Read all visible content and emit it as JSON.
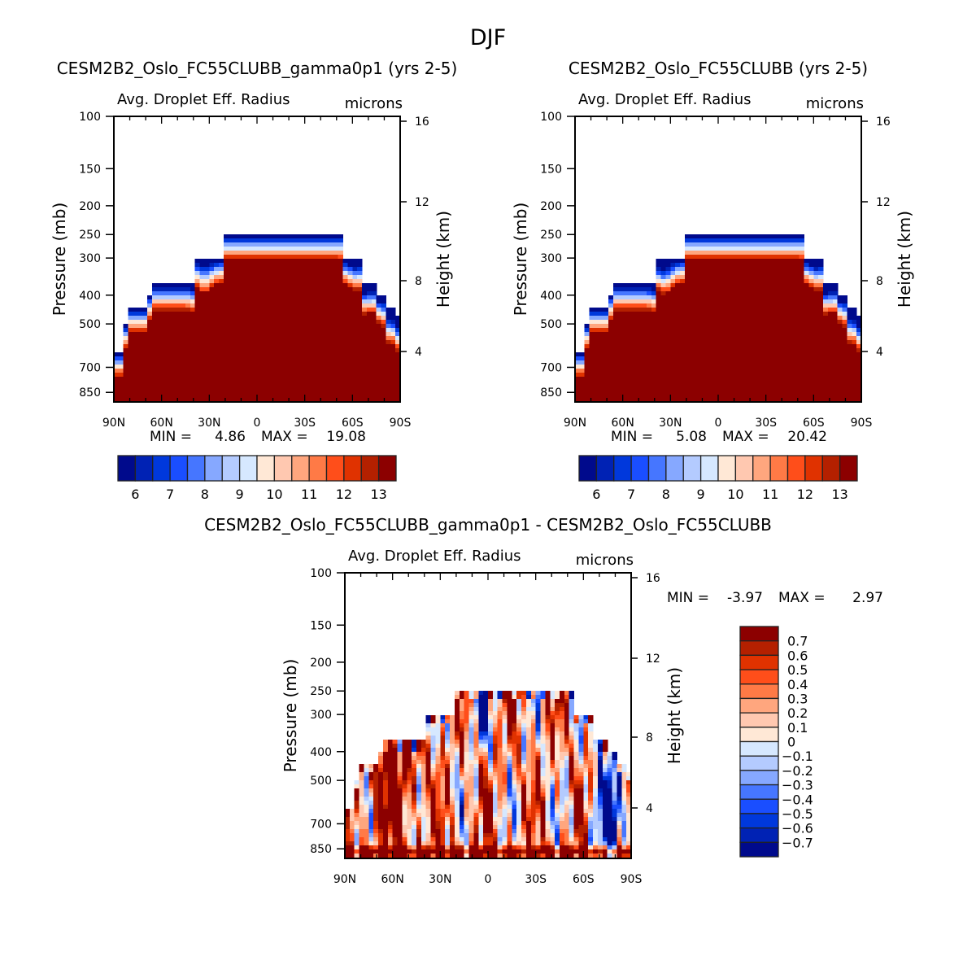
{
  "title": "DJF",
  "colors": {
    "abs_palette": [
      "#000a8c",
      "#0022b4",
      "#0038dc",
      "#1a4eff",
      "#4676ff",
      "#86a8ff",
      "#b4cbff",
      "#d6e8ff",
      "#ffe8d6",
      "#ffc8b0",
      "#ffa67e",
      "#ff7a46",
      "#ff4e1a",
      "#e03200",
      "#b42000",
      "#8c0000"
    ]
  },
  "chart_data": [
    {
      "type": "heatmap",
      "title": "CESM2B2_Oslo_FC55CLUBB_gamma0p1 (yrs 2-5)",
      "subtitle": "Avg. Droplet Eff. Radius",
      "units": "microns",
      "xlabel": "",
      "ylabel": "Pressure (mb)",
      "ylabel_right": "Height (km)",
      "xticks": [
        "90N",
        "60N",
        "30N",
        "0",
        "30S",
        "60S",
        "90S"
      ],
      "xtick_values": [
        90,
        60,
        30,
        0,
        -30,
        -60,
        -90
      ],
      "yticks": [
        "100",
        "150",
        "200",
        "250",
        "300",
        "400",
        "500",
        "700",
        "850"
      ],
      "ytick_values": [
        100,
        150,
        200,
        250,
        300,
        400,
        500,
        700,
        850
      ],
      "yticks_right": [
        "16",
        "12",
        "8",
        "4"
      ],
      "ytick_right_values": [
        16,
        12,
        8,
        4
      ],
      "ylim": [
        100,
        916
      ],
      "xlim": [
        90,
        -90
      ],
      "min_label": "MIN =",
      "min": "4.86",
      "max_label": "MAX =",
      "max": "19.08",
      "levels": [
        6,
        6.5,
        7,
        7.5,
        8,
        8.5,
        9,
        9.5,
        10,
        10.5,
        11,
        11.5,
        12,
        12.5,
        13
      ],
      "colorbar_labels": [
        "6",
        "7",
        "8",
        "9",
        "10",
        "11",
        "12",
        "13"
      ],
      "mask_top_pressure": [
        [
          90,
          620
        ],
        [
          85,
          500
        ],
        [
          80,
          440
        ],
        [
          70,
          400
        ],
        [
          65,
          370
        ],
        [
          50,
          370
        ],
        [
          40,
          300
        ],
        [
          20,
          250
        ],
        [
          -45,
          250
        ],
        [
          -55,
          300
        ],
        [
          -65,
          370
        ],
        [
          -75,
          400
        ],
        [
          -82,
          440
        ],
        [
          -88,
          470
        ]
      ],
      "seed": 1
    },
    {
      "type": "heatmap",
      "title": "CESM2B2_Oslo_FC55CLUBB (yrs 2-5)",
      "subtitle": "Avg. Droplet Eff. Radius",
      "units": "microns",
      "ylabel": "Pressure (mb)",
      "ylabel_right": "Height (km)",
      "xticks": [
        "90N",
        "60N",
        "30N",
        "0",
        "30S",
        "60S",
        "90S"
      ],
      "xtick_values": [
        90,
        60,
        30,
        0,
        -30,
        -60,
        -90
      ],
      "yticks": [
        "100",
        "150",
        "200",
        "250",
        "300",
        "400",
        "500",
        "700",
        "850"
      ],
      "ytick_values": [
        100,
        150,
        200,
        250,
        300,
        400,
        500,
        700,
        850
      ],
      "yticks_right": [
        "16",
        "12",
        "8",
        "4"
      ],
      "ytick_right_values": [
        16,
        12,
        8,
        4
      ],
      "ylim": [
        100,
        916
      ],
      "xlim": [
        90,
        -90
      ],
      "min_label": "MIN =",
      "min": "5.08",
      "max_label": "MAX =",
      "max": "20.42",
      "levels": [
        6,
        6.5,
        7,
        7.5,
        8,
        8.5,
        9,
        9.5,
        10,
        10.5,
        11,
        11.5,
        12,
        12.5,
        13
      ],
      "colorbar_labels": [
        "6",
        "7",
        "8",
        "9",
        "10",
        "11",
        "12",
        "13"
      ],
      "mask_top_pressure": [
        [
          90,
          620
        ],
        [
          85,
          500
        ],
        [
          80,
          440
        ],
        [
          70,
          400
        ],
        [
          65,
          370
        ],
        [
          50,
          370
        ],
        [
          40,
          300
        ],
        [
          20,
          250
        ],
        [
          -45,
          250
        ],
        [
          -55,
          300
        ],
        [
          -65,
          370
        ],
        [
          -75,
          400
        ],
        [
          -82,
          440
        ],
        [
          -88,
          470
        ]
      ],
      "seed": 2
    },
    {
      "type": "heatmap",
      "title": "CESM2B2_Oslo_FC55CLUBB_gamma0p1 - CESM2B2_Oslo_FC55CLUBB",
      "subtitle": "Avg. Droplet Eff. Radius",
      "units": "microns",
      "ylabel": "Pressure (mb)",
      "ylabel_right": "Height (km)",
      "xticks": [
        "90N",
        "60N",
        "30N",
        "0",
        "30S",
        "60S",
        "90S"
      ],
      "xtick_values": [
        90,
        60,
        30,
        0,
        -30,
        -60,
        -90
      ],
      "yticks": [
        "100",
        "150",
        "200",
        "250",
        "300",
        "400",
        "500",
        "700",
        "850"
      ],
      "ytick_values": [
        100,
        150,
        200,
        250,
        300,
        400,
        500,
        700,
        850
      ],
      "yticks_right": [
        "16",
        "12",
        "8",
        "4"
      ],
      "ytick_right_values": [
        16,
        12,
        8,
        4
      ],
      "ylim": [
        100,
        916
      ],
      "xlim": [
        90,
        -90
      ],
      "min_label": "MIN =",
      "min": "-3.97",
      "max_label": "MAX =",
      "max": "2.97",
      "levels": [
        -0.7,
        -0.6,
        -0.5,
        -0.4,
        -0.3,
        -0.2,
        -0.1,
        0,
        0.1,
        0.2,
        0.3,
        0.4,
        0.5,
        0.6,
        0.7
      ],
      "colorbar_labels": [
        "0.7",
        "0.6",
        "0.5",
        "0.4",
        "0.3",
        "0.2",
        "0.1",
        "0",
        "−0.1",
        "−0.2",
        "−0.3",
        "−0.4",
        "−0.5",
        "−0.6",
        "−0.7"
      ],
      "mask_top_pressure": [
        [
          90,
          620
        ],
        [
          85,
          500
        ],
        [
          80,
          440
        ],
        [
          70,
          400
        ],
        [
          65,
          370
        ],
        [
          50,
          370
        ],
        [
          40,
          300
        ],
        [
          20,
          250
        ],
        [
          -45,
          250
        ],
        [
          -55,
          300
        ],
        [
          -65,
          370
        ],
        [
          -75,
          400
        ],
        [
          -82,
          440
        ],
        [
          -88,
          470
        ]
      ],
      "seed": 3
    }
  ]
}
